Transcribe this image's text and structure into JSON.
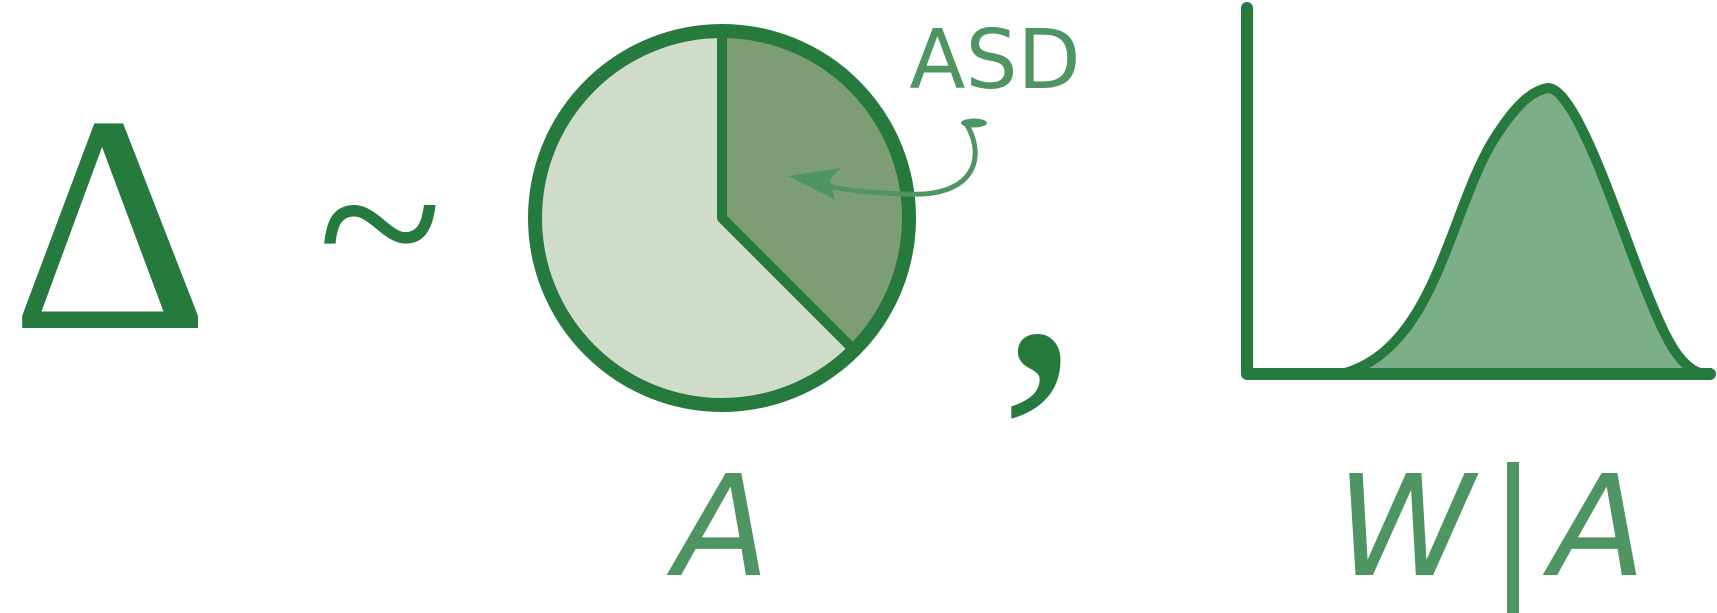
{
  "formula": {
    "delta_symbol": "Δ",
    "tilde_symbol": "~",
    "comma_symbol": ","
  },
  "pie": {
    "highlight_fraction": 0.375,
    "annotation": "ASD",
    "caption": "A"
  },
  "density": {
    "caption_w": "W",
    "caption_separator": "|",
    "caption_a": "A"
  },
  "colors": {
    "dark_green": "#267a3d",
    "mid_green": "#4f9563",
    "pie_light": "#cfdcca",
    "pie_wedge": "#7d9e75",
    "density_fill": "#7caf87",
    "background": "#ffffff"
  }
}
